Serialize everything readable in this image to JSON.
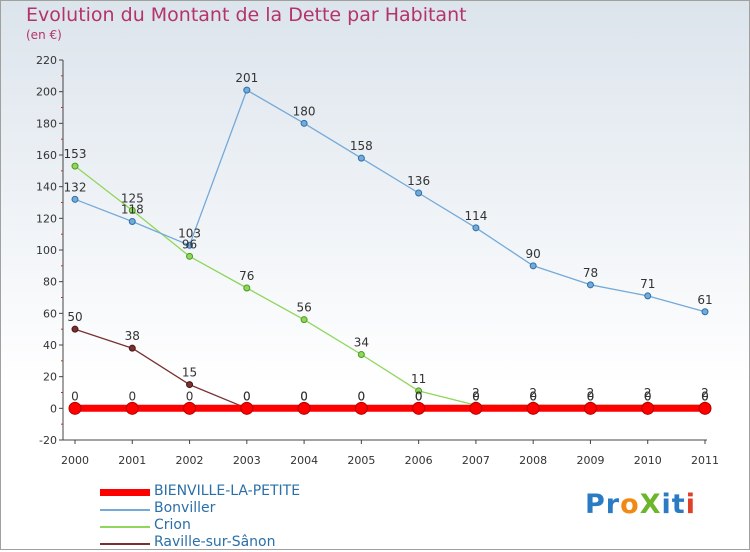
{
  "header": {
    "title": "Evolution du Montant de la Dette par Habitant",
    "unit": "(en €)"
  },
  "brand": {
    "text": "ProXiti",
    "letter_colors": [
      "#2b7bc4",
      "#2b7bc4",
      "#f08a12",
      "#6cb52d",
      "#2b7bc4",
      "#2b7bc4",
      "#e0402a"
    ]
  },
  "chart_data": {
    "type": "line",
    "x": [
      "2000",
      "2001",
      "2002",
      "2003",
      "2004",
      "2005",
      "2006",
      "2007",
      "2008",
      "2009",
      "2010",
      "2011"
    ],
    "ylim": [
      -20,
      220
    ],
    "yticks": [
      -20,
      0,
      20,
      40,
      60,
      80,
      100,
      120,
      140,
      160,
      180,
      200,
      220
    ],
    "grid": false,
    "legend_position": "bottom-left",
    "series": [
      {
        "name": "BIENVILLE-LA-PETITE",
        "color": "#ff0000",
        "marker_edge": "#b00000",
        "width": 7,
        "marker": 6,
        "values": [
          0,
          0,
          0,
          0,
          0,
          0,
          0,
          0,
          0,
          0,
          0,
          0
        ],
        "labels": [
          "0",
          "0",
          "0",
          "0",
          "0",
          "0",
          "0",
          "0",
          "0",
          "0",
          "0",
          "0"
        ]
      },
      {
        "name": "Bonviller",
        "color": "#74a9d8",
        "marker_edge": "#2a6fa8",
        "width": 1.3,
        "marker": 3,
        "values": [
          132,
          118,
          103,
          201,
          180,
          158,
          136,
          114,
          90,
          78,
          71,
          61
        ],
        "labels": [
          "132",
          "118",
          "103",
          "201",
          "180",
          "158",
          "136",
          "114",
          "90",
          "78",
          "71",
          "61"
        ]
      },
      {
        "name": "Crion",
        "color": "#8fd65a",
        "marker_edge": "#4a9a22",
        "width": 1.3,
        "marker": 3,
        "values": [
          153,
          125,
          96,
          76,
          56,
          34,
          11,
          2,
          2,
          2,
          2,
          2
        ],
        "labels": [
          "153",
          "125",
          "96",
          "76",
          "56",
          "34",
          "11",
          "2",
          "2",
          "2",
          "2",
          "2"
        ]
      },
      {
        "name": "Raville-sur-Sânon",
        "color": "#7a3030",
        "marker_edge": "#4a1515",
        "width": 1.3,
        "marker": 3,
        "values": [
          50,
          38,
          15,
          0,
          0,
          0,
          0,
          0,
          0,
          0,
          0,
          0
        ],
        "labels": [
          "50",
          "38",
          "15",
          "0",
          "0",
          "0",
          "0",
          "0",
          "0",
          "0",
          "0",
          "0"
        ]
      }
    ]
  }
}
